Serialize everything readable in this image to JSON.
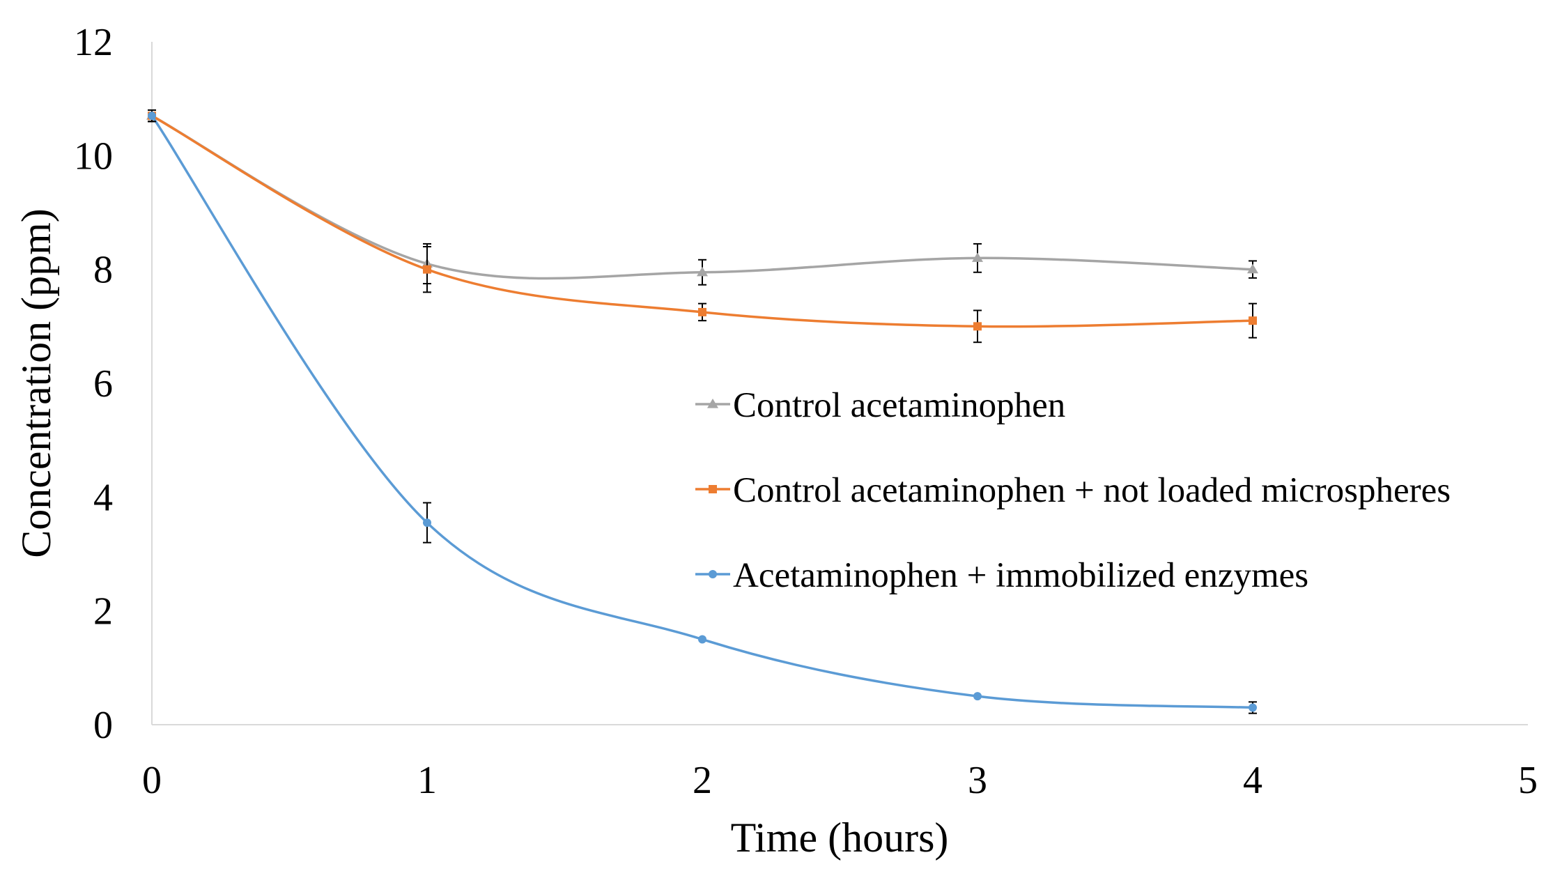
{
  "chart_data": {
    "type": "line",
    "xlabel": "Time (hours)",
    "ylabel": "Concentration (ppm)",
    "xlim": [
      0,
      5
    ],
    "ylim": [
      0,
      12
    ],
    "xticks": [
      "0",
      "1",
      "2",
      "3",
      "4",
      "5"
    ],
    "yticks": [
      "0",
      "2",
      "4",
      "6",
      "8",
      "10",
      "12"
    ],
    "legend_position": "center-right",
    "series": [
      {
        "name": "Control acetaminophen",
        "color": "#a5a5a5",
        "marker": "triangle",
        "x": [
          0,
          1,
          2,
          3,
          4
        ],
        "y": [
          10.7,
          8.1,
          7.95,
          8.2,
          8.0
        ],
        "error": [
          0.1,
          0.35,
          0.22,
          0.25,
          0.15
        ]
      },
      {
        "name": "Control acetaminophen + not loaded microspheres",
        "color": "#ed7d31",
        "marker": "square",
        "x": [
          0,
          1,
          2,
          3,
          4
        ],
        "y": [
          10.7,
          8.0,
          7.25,
          7.0,
          7.1
        ],
        "error": [
          0.1,
          0.4,
          0.15,
          0.28,
          0.3
        ]
      },
      {
        "name": "Acetaminophen + immobilized enzymes",
        "color": "#5b9bd5",
        "marker": "circle",
        "x": [
          0,
          1,
          2,
          3,
          4
        ],
        "y": [
          10.7,
          3.55,
          1.5,
          0.5,
          0.3
        ],
        "error": [
          0.1,
          0.35,
          0,
          0,
          0.1
        ]
      }
    ]
  }
}
